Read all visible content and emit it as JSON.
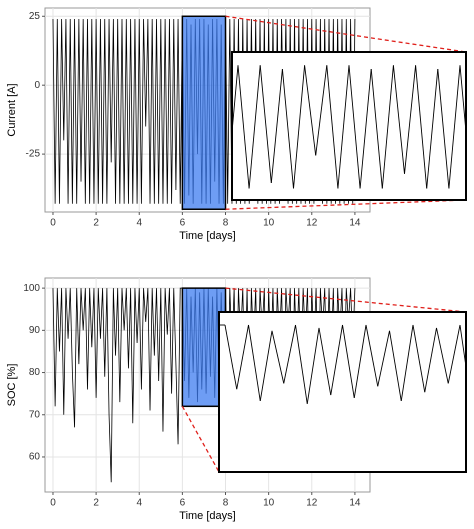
{
  "chart_data": [
    {
      "type": "line",
      "xlabel": "Time [days]",
      "ylabel": "Current [A]",
      "color": "#000000",
      "grid": true,
      "xlim": [
        -0.37,
        14.7
      ],
      "xticks": [
        0,
        2,
        4,
        6,
        8,
        10,
        12,
        14
      ],
      "ylim": [
        -46,
        28
      ],
      "yticks": [
        -25,
        0,
        25
      ],
      "zoom_xlim": [
        6,
        8
      ],
      "zoom_ylim": [
        -45,
        25
      ],
      "zoom_color": "#3d7cf0",
      "x": [
        0,
        0.1,
        0.2,
        0.3,
        0.4,
        0.5,
        0.6,
        0.7,
        0.8,
        0.9,
        1,
        1.1,
        1.2,
        1.3,
        1.4,
        1.5,
        1.6,
        1.7,
        1.8,
        1.9,
        2,
        2.1,
        2.2,
        2.3,
        2.4,
        2.5,
        2.6,
        2.7,
        2.8,
        2.9,
        3,
        3.1,
        3.2,
        3.3,
        3.4,
        3.5,
        3.6,
        3.7,
        3.8,
        3.9,
        4,
        4.1,
        4.2,
        4.3,
        4.4,
        4.5,
        4.6,
        4.7,
        4.8,
        4.9,
        5,
        5.1,
        5.2,
        5.3,
        5.4,
        5.5,
        5.6,
        5.7,
        5.8,
        5.9,
        6,
        6.1,
        6.2,
        6.3,
        6.4,
        6.5,
        6.6,
        6.7,
        6.8,
        6.9,
        7,
        7.1,
        7.2,
        7.3,
        7.4,
        7.5,
        7.6,
        7.7,
        7.8,
        7.9,
        8,
        8.1,
        8.2,
        8.3,
        8.4,
        8.5,
        8.6,
        8.7,
        8.8,
        8.9,
        9,
        9.1,
        9.2,
        9.3,
        9.4,
        9.5,
        9.6,
        9.7,
        9.8,
        9.9,
        10,
        10.1,
        10.2,
        10.3,
        10.4,
        10.5,
        10.6,
        10.7,
        10.8,
        10.9,
        11,
        11.1,
        11.2,
        11.3,
        11.4,
        11.5,
        11.6,
        11.7,
        11.8,
        11.9,
        12,
        12.1,
        12.2,
        12.3,
        12.4,
        12.5,
        12.6,
        12.7,
        12.8,
        12.9,
        13,
        13.1,
        13.2,
        13.3,
        13.4,
        13.5,
        13.6,
        13.7,
        13.8,
        13.9,
        14
      ],
      "values": [
        24,
        -43,
        24,
        -43,
        24,
        -20,
        24,
        -43,
        24,
        -43,
        24,
        -43,
        24,
        -35,
        24,
        -43,
        24,
        -43,
        24,
        -43,
        24,
        -43,
        24,
        -43,
        24,
        -43,
        24,
        -28,
        24,
        -43,
        24,
        -43,
        24,
        -43,
        24,
        -43,
        24,
        -43,
        24,
        -43,
        24,
        -43,
        24,
        -15,
        24,
        -43,
        24,
        -43,
        24,
        -43,
        24,
        -43,
        24,
        -43,
        24,
        -43,
        24,
        -38,
        24,
        -43,
        24,
        -43,
        24,
        -40,
        22,
        -43,
        24,
        -25,
        24,
        -43,
        24,
        -43,
        22,
        -43,
        24,
        -35,
        24,
        -43,
        22,
        -43,
        24,
        -43,
        24,
        -43,
        24,
        -43,
        24,
        -43,
        24,
        -43,
        24,
        -43,
        24,
        -30,
        24,
        -43,
        24,
        -43,
        24,
        -43,
        24,
        -43,
        24,
        -43,
        24,
        -43,
        24,
        -20,
        24,
        -43,
        24,
        -43,
        24,
        -43,
        24,
        -43,
        24,
        -43,
        24,
        -43,
        24,
        -43,
        24,
        -36,
        24,
        -43,
        24,
        -43,
        24,
        -43,
        24,
        -43,
        24,
        -43,
        24,
        -43,
        24,
        -43,
        24,
        -43,
        24
      ]
    },
    {
      "type": "line",
      "xlabel": "Time [days]",
      "ylabel": "SOC [%]",
      "color": "#000000",
      "grid": true,
      "xlim": [
        -0.37,
        14.7
      ],
      "xticks": [
        0,
        2,
        4,
        6,
        8,
        10,
        12,
        14
      ],
      "ylim": [
        51.7,
        102.4
      ],
      "yticks": [
        60,
        70,
        80,
        90,
        100
      ],
      "zoom_xlim": [
        6,
        8
      ],
      "zoom_ylim": [
        72,
        100
      ],
      "zoom_color": "#3d7cf0",
      "x": [
        0,
        0.1,
        0.2,
        0.3,
        0.4,
        0.5,
        0.6,
        0.7,
        0.8,
        0.9,
        1,
        1.1,
        1.2,
        1.3,
        1.4,
        1.5,
        1.6,
        1.7,
        1.8,
        1.9,
        2,
        2.1,
        2.2,
        2.3,
        2.4,
        2.5,
        2.6,
        2.7,
        2.8,
        2.9,
        3,
        3.1,
        3.2,
        3.3,
        3.4,
        3.5,
        3.6,
        3.7,
        3.8,
        3.9,
        4,
        4.1,
        4.2,
        4.3,
        4.4,
        4.5,
        4.6,
        4.7,
        4.8,
        4.9,
        5,
        5.1,
        5.2,
        5.3,
        5.4,
        5.5,
        5.6,
        5.7,
        5.8,
        5.9,
        6,
        6.1,
        6.2,
        6.3,
        6.4,
        6.5,
        6.6,
        6.7,
        6.8,
        6.9,
        7,
        7.1,
        7.2,
        7.3,
        7.4,
        7.5,
        7.6,
        7.7,
        7.8,
        7.9,
        8,
        8.1,
        8.2,
        8.3,
        8.4,
        8.5,
        8.6,
        8.7,
        8.8,
        8.9,
        9,
        9.1,
        9.2,
        9.3,
        9.4,
        9.5,
        9.6,
        9.7,
        9.8,
        9.9,
        10,
        10.1,
        10.2,
        10.3,
        10.4,
        10.5,
        10.6,
        10.7,
        10.8,
        10.9,
        11,
        11.1,
        11.2,
        11.3,
        11.4,
        11.5,
        11.6,
        11.7,
        11.8,
        11.9,
        12,
        12.1,
        12.2,
        12.3,
        12.4,
        12.5,
        12.6,
        12.7,
        12.8,
        12.9,
        13,
        13.1,
        13.2,
        13.3,
        13.4,
        13.5,
        13.6,
        13.7,
        13.8,
        13.9,
        14
      ],
      "values": [
        100,
        72,
        100,
        85,
        100,
        70,
        100,
        88,
        100,
        80,
        67,
        100,
        82,
        100,
        90,
        100,
        76,
        100,
        86,
        100,
        74,
        100,
        88,
        100,
        79,
        100,
        70,
        54,
        100,
        84,
        100,
        73,
        100,
        90,
        100,
        81,
        100,
        68,
        100,
        87,
        100,
        76,
        100,
        92,
        100,
        71,
        100,
        84,
        100,
        78,
        100,
        66,
        100,
        89,
        100,
        75,
        100,
        82,
        63,
        100,
        100,
        78,
        100,
        74,
        98,
        80,
        100,
        73,
        99,
        76,
        100,
        75,
        100,
        79,
        98,
        74,
        100,
        77,
        99,
        80,
        100,
        72,
        100,
        85,
        100,
        69,
        100,
        88,
        100,
        77,
        100,
        71,
        100,
        86,
        100,
        74,
        100,
        90,
        100,
        70,
        100,
        83,
        100,
        73,
        100,
        87,
        100,
        76,
        100,
        91,
        100,
        72,
        100,
        84,
        100,
        78,
        100,
        88,
        100,
        73,
        100,
        86,
        100,
        75,
        100,
        90,
        100,
        79,
        100,
        84,
        100,
        74,
        100,
        89,
        100,
        77,
        100,
        92,
        100,
        86,
        100
      ]
    }
  ]
}
